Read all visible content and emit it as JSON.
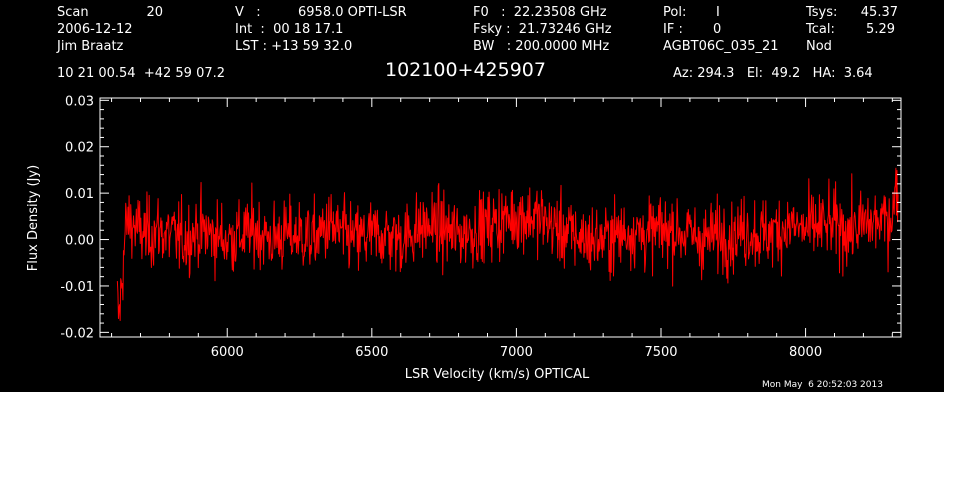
{
  "header": {
    "scan_label": "Scan",
    "scan_value": "20",
    "date": "2006-12-12",
    "observer": "Jim Braatz",
    "v_label": "V   :",
    "v_value": "6958.0 OPTI-LSR",
    "int_line": "Int  :  00 18 17.1",
    "lst_line": "LST : +13 59 32.0",
    "f0_line": "F0   :  22.23508 GHz",
    "fsky_line": "Fsky :  21.73246 GHz",
    "bw_line": "BW   : 200.0000 MHz",
    "pol_label": "Pol:",
    "pol_value": "I",
    "if_label": "IF :",
    "if_value": "0",
    "project": "AGBT06C_035_21",
    "tsys_label": "Tsys:",
    "tsys_value": "45.37",
    "tcal_label": "Tcal:",
    "tcal_value": "5.29",
    "mode": "Nod",
    "coords": "10 21 00.54  +42 59 07.2",
    "source": "102100+425907",
    "az_line": "Az: 294.3   El:  49.2   HA:  3.64"
  },
  "timestamp": "Mon May  6 20:52:03 2013",
  "colors": {
    "background": "#000000",
    "axes": "#ffffff",
    "trace": "#ff0000"
  },
  "chart_data": {
    "type": "line",
    "xlabel": "LSR Velocity (km/s) OPTICAL",
    "ylabel": "Flux Density (Jy)",
    "xlim": [
      5560,
      8330
    ],
    "ylim": [
      -0.021,
      0.0305
    ],
    "xticks": [
      6000,
      6500,
      7000,
      7500,
      8000
    ],
    "xtick_labels": [
      "6000",
      "6500",
      "7000",
      "7500",
      "8000"
    ],
    "yticks": [
      -0.02,
      -0.01,
      0.0,
      0.01,
      0.02,
      0.03
    ],
    "ytick_labels": [
      "-0.02",
      "-0.01",
      "0.00",
      "0.01",
      "0.02",
      "0.03"
    ],
    "grid": false,
    "legend": "none",
    "series": [
      {
        "x": [
          5620,
          5626,
          5632,
          5640,
          5650,
          5665,
          5690,
          5720,
          5760,
          5800,
          5850,
          5900,
          5950,
          6000,
          6050,
          6100,
          6150,
          6200,
          6250,
          6300,
          6350,
          6400,
          6450,
          6500,
          6550,
          6600,
          6650,
          6700,
          6750,
          6800,
          6850,
          6900,
          6950,
          7000,
          7050,
          7100,
          7150,
          7200,
          7250,
          7300,
          7350,
          7400,
          7450,
          7500,
          7550,
          7600,
          7650,
          7700,
          7750,
          7800,
          7850,
          7900,
          7950,
          8000,
          8050,
          8100,
          8150,
          8200,
          8250,
          8280,
          8300,
          8310,
          8320
        ],
        "values": [
          -0.014,
          -0.017,
          -0.012,
          -0.005,
          0.003,
          0.004,
          0.002,
          0.001,
          0.002,
          0.001,
          0.0,
          0.002,
          0.001,
          0.0,
          0.001,
          0.002,
          0.0,
          0.001,
          0.001,
          0.0,
          0.003,
          0.001,
          0.0,
          0.001,
          0.001,
          0.0,
          0.002,
          0.003,
          0.002,
          0.001,
          0.002,
          0.003,
          0.004,
          0.005,
          0.005,
          0.004,
          0.002,
          0.001,
          0.0,
          0.0,
          0.001,
          0.002,
          0.001,
          0.002,
          0.002,
          0.001,
          0.0,
          0.001,
          0.001,
          0.002,
          0.001,
          0.002,
          0.003,
          0.002,
          0.003,
          0.003,
          0.002,
          0.003,
          0.004,
          0.004,
          0.006,
          0.009,
          0.012
        ],
        "noise_rms": 0.0038,
        "color": "#ff0000"
      }
    ]
  }
}
